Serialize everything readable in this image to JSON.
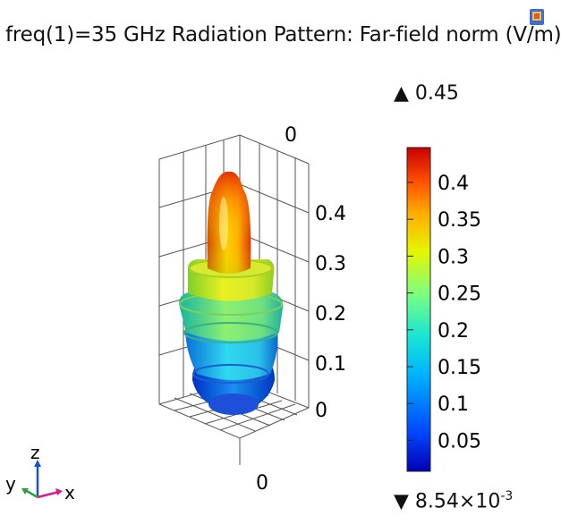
{
  "title": "freq(1)=35 GHz Radiation Pattern: Far-field norm (V/m)",
  "plot": {
    "z_axis_ticks": [
      "0",
      "0.1",
      "0.2",
      "0.3",
      "0.4"
    ],
    "top_axis_label": "0",
    "bottom_axis_label": "0"
  },
  "colorbar": {
    "max_label": "0.45",
    "min_label": "8.54×10",
    "min_exponent": "-3",
    "ticks": [
      "0.4",
      "0.35",
      "0.3",
      "0.25",
      "0.2",
      "0.15",
      "0.1",
      "0.05"
    ],
    "colors": [
      "#0000b4",
      "#0047ff",
      "#00b4ff",
      "#19e6d2",
      "#7dff7d",
      "#e6f500",
      "#ffaa00",
      "#ff4b00",
      "#c80000"
    ]
  },
  "triad": {
    "x": "x",
    "y": "y",
    "z": "z"
  },
  "icons": {
    "title_icon": "comsol-app-icon"
  }
}
